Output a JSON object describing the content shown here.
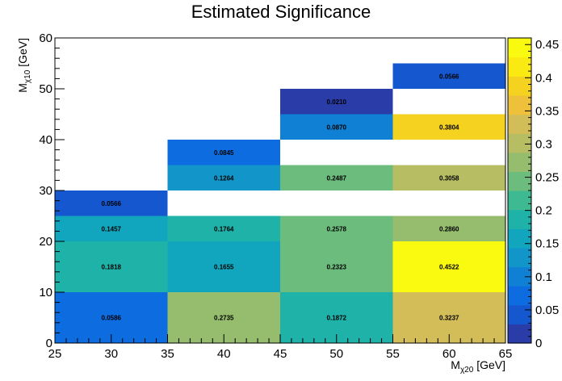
{
  "chart_data": {
    "type": "heatmap",
    "title": "Estimated Significance",
    "xlabel": {
      "main": "M",
      "sub": "χ20",
      "unit": " [GeV]"
    },
    "ylabel": {
      "main": "M",
      "sub": "χ10",
      "unit": " [GeV]"
    },
    "xlim": [
      25,
      65
    ],
    "ylim": [
      0,
      60
    ],
    "xticks": [
      "25",
      "30",
      "35",
      "40",
      "45",
      "50",
      "55",
      "60",
      "65"
    ],
    "yticks": [
      "0",
      "10",
      "20",
      "30",
      "40",
      "50",
      "60"
    ],
    "zlim": [
      0,
      0.46
    ],
    "zticks": [
      "0",
      "0.05",
      "0.1",
      "0.15",
      "0.2",
      "0.25",
      "0.3",
      "0.35",
      "0.4",
      "0.45"
    ],
    "cells": [
      {
        "x": [
          25,
          35
        ],
        "y": [
          0,
          10
        ],
        "value": 0.0586,
        "label": "0.0586"
      },
      {
        "x": [
          25,
          35
        ],
        "y": [
          10,
          20
        ],
        "value": 0.1818,
        "label": "0.1818"
      },
      {
        "x": [
          25,
          35
        ],
        "y": [
          20,
          25
        ],
        "value": 0.1457,
        "label": "0.1457"
      },
      {
        "x": [
          25,
          35
        ],
        "y": [
          25,
          30
        ],
        "value": 0.0566,
        "label": "0.0566"
      },
      {
        "x": [
          35,
          45
        ],
        "y": [
          0,
          10
        ],
        "value": 0.2735,
        "label": "0.2735"
      },
      {
        "x": [
          35,
          45
        ],
        "y": [
          10,
          20
        ],
        "value": 0.1655,
        "label": "0.1655"
      },
      {
        "x": [
          35,
          45
        ],
        "y": [
          20,
          25
        ],
        "value": 0.1764,
        "label": "0.1764"
      },
      {
        "x": [
          35,
          45
        ],
        "y": [
          30,
          35
        ],
        "value": 0.1264,
        "label": "0.1264"
      },
      {
        "x": [
          35,
          45
        ],
        "y": [
          35,
          40
        ],
        "value": 0.0845,
        "label": "0.0845"
      },
      {
        "x": [
          45,
          55
        ],
        "y": [
          0,
          10
        ],
        "value": 0.1872,
        "label": "0.1872"
      },
      {
        "x": [
          45,
          55
        ],
        "y": [
          10,
          20
        ],
        "value": 0.2323,
        "label": "0.2323"
      },
      {
        "x": [
          45,
          55
        ],
        "y": [
          20,
          25
        ],
        "value": 0.2578,
        "label": "0.2578"
      },
      {
        "x": [
          45,
          55
        ],
        "y": [
          30,
          35
        ],
        "value": 0.2487,
        "label": "0.2487"
      },
      {
        "x": [
          45,
          55
        ],
        "y": [
          40,
          45
        ],
        "value": 0.087,
        "label": "0.0870"
      },
      {
        "x": [
          45,
          55
        ],
        "y": [
          45,
          50
        ],
        "value": 0.021,
        "label": "0.0210"
      },
      {
        "x": [
          55,
          65
        ],
        "y": [
          0,
          10
        ],
        "value": 0.3237,
        "label": "0.3237"
      },
      {
        "x": [
          55,
          65
        ],
        "y": [
          10,
          20
        ],
        "value": 0.4522,
        "label": "0.4522"
      },
      {
        "x": [
          55,
          65
        ],
        "y": [
          20,
          25
        ],
        "value": 0.286,
        "label": "0.2860"
      },
      {
        "x": [
          55,
          65
        ],
        "y": [
          30,
          35
        ],
        "value": 0.3058,
        "label": "0.3058"
      },
      {
        "x": [
          55,
          65
        ],
        "y": [
          40,
          45
        ],
        "value": 0.3804,
        "label": "0.3804"
      },
      {
        "x": [
          55,
          65
        ],
        "y": [
          50,
          55
        ],
        "value": 0.0566,
        "label": "0.0566"
      }
    ],
    "palette": [
      "#2a3ca8",
      "#1457cf",
      "#0c6ce0",
      "#0f80d4",
      "#1295c8",
      "#12a6be",
      "#1fb2a8",
      "#3dba92",
      "#6cbd7d",
      "#95bd6d",
      "#b6bd62",
      "#d2bd58",
      "#efc13a",
      "#f5d21f",
      "#fbe912",
      "#fafa10"
    ],
    "grid": false,
    "colorbar": "right"
  }
}
